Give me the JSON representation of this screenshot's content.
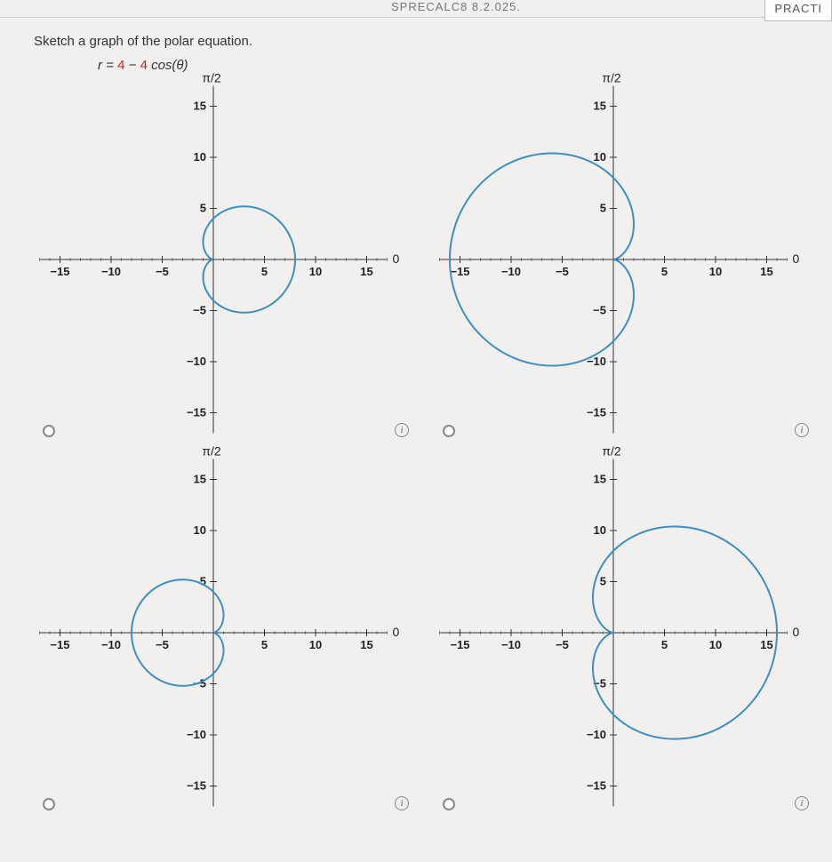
{
  "header": {
    "ref": "SPRECALC8 8.2.025.",
    "practice": "PRACTI"
  },
  "prompt": "Sketch a graph of the polar equation.",
  "equation": {
    "lhs": "r",
    "eq": " = ",
    "a": "4",
    "minus": " − ",
    "b": "4",
    "fn": " cos(θ)"
  },
  "chart_common": {
    "xlim": [
      -17,
      17
    ],
    "ylim": [
      -17,
      17
    ],
    "xticks": [
      -15,
      -10,
      -5,
      5,
      10,
      15
    ],
    "yticks": [
      -15,
      -10,
      -5,
      5,
      10,
      15
    ],
    "ylabeled": [
      15,
      10,
      5,
      -5,
      -10,
      -15
    ],
    "top_label": "π/2",
    "right_label": "0",
    "axis_color": "#333333",
    "curve_color": "#3b8fc4",
    "background": "#f2f0ee",
    "curve_width": 2,
    "label_fontsize": 13
  },
  "charts": [
    {
      "id": "A",
      "type": "cardioid",
      "direction": "right",
      "a": 4,
      "b": 4
    },
    {
      "id": "B",
      "type": "cardioid",
      "direction": "left",
      "a": 8,
      "b": 8,
      "note": "large-left"
    },
    {
      "id": "C",
      "type": "cardioid",
      "direction": "left",
      "a": 4,
      "b": 4
    },
    {
      "id": "D",
      "type": "cardioid",
      "direction": "right",
      "a": 8,
      "b": 8,
      "note": "large-right"
    }
  ],
  "info_glyph": "i"
}
